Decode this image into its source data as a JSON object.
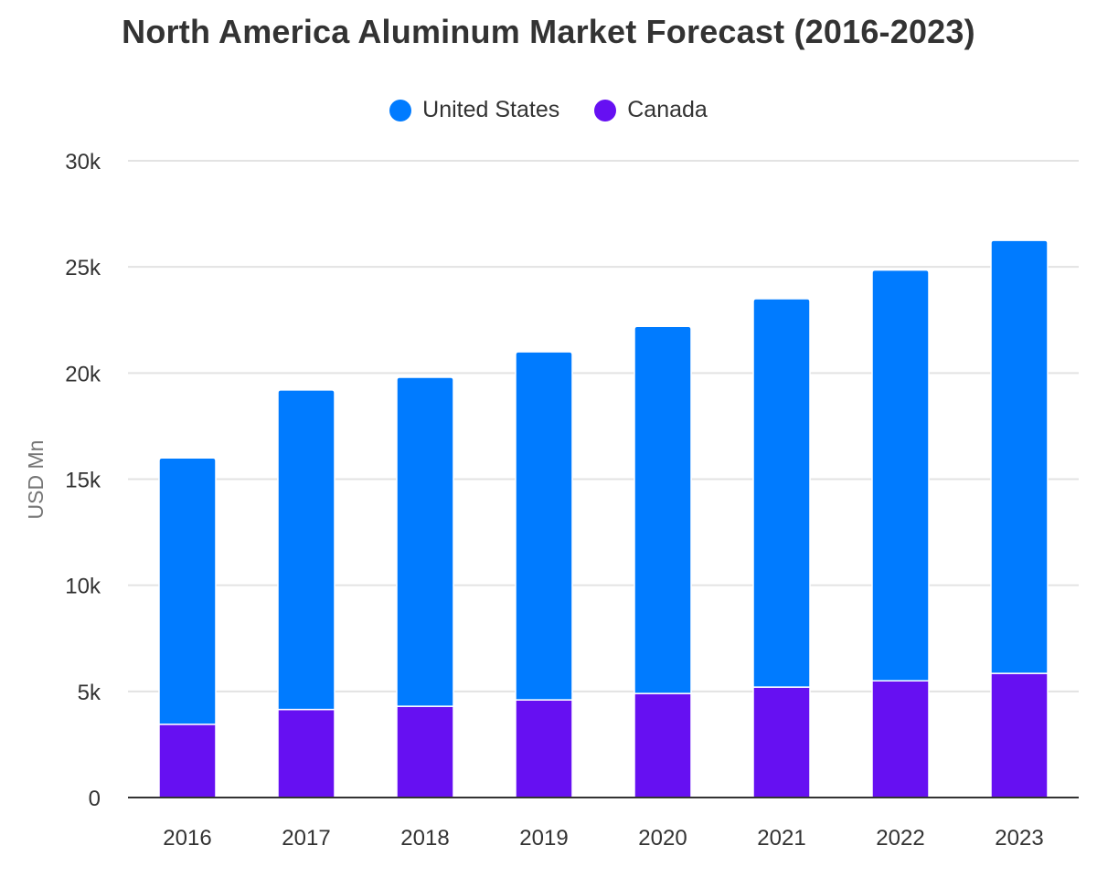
{
  "chart_data": {
    "type": "bar",
    "stacked": true,
    "title": "North America Aluminum Market Forecast (2016-2023)",
    "ylabel": "USD Mn",
    "xlabel": "",
    "categories": [
      "2016",
      "2017",
      "2018",
      "2019",
      "2020",
      "2021",
      "2022",
      "2023"
    ],
    "series": [
      {
        "name": "Canada",
        "color": "#6610f2",
        "values": [
          3450,
          4150,
          4300,
          4600,
          4900,
          5200,
          5500,
          5850
        ]
      },
      {
        "name": "United States",
        "color": "#007bff",
        "values": [
          12550,
          15050,
          15500,
          16400,
          17300,
          18300,
          19350,
          20400
        ]
      }
    ],
    "legend": [
      {
        "name": "United States",
        "color": "#007bff"
      },
      {
        "name": "Canada",
        "color": "#6610f2"
      }
    ],
    "legend_position": "top-center",
    "ylim": [
      0,
      30000
    ],
    "yticks": [
      0,
      5000,
      10000,
      15000,
      20000,
      25000,
      30000
    ],
    "ytick_labels": [
      "0",
      "5k",
      "10k",
      "15k",
      "20k",
      "25k",
      "30k"
    ],
    "grid": true
  }
}
